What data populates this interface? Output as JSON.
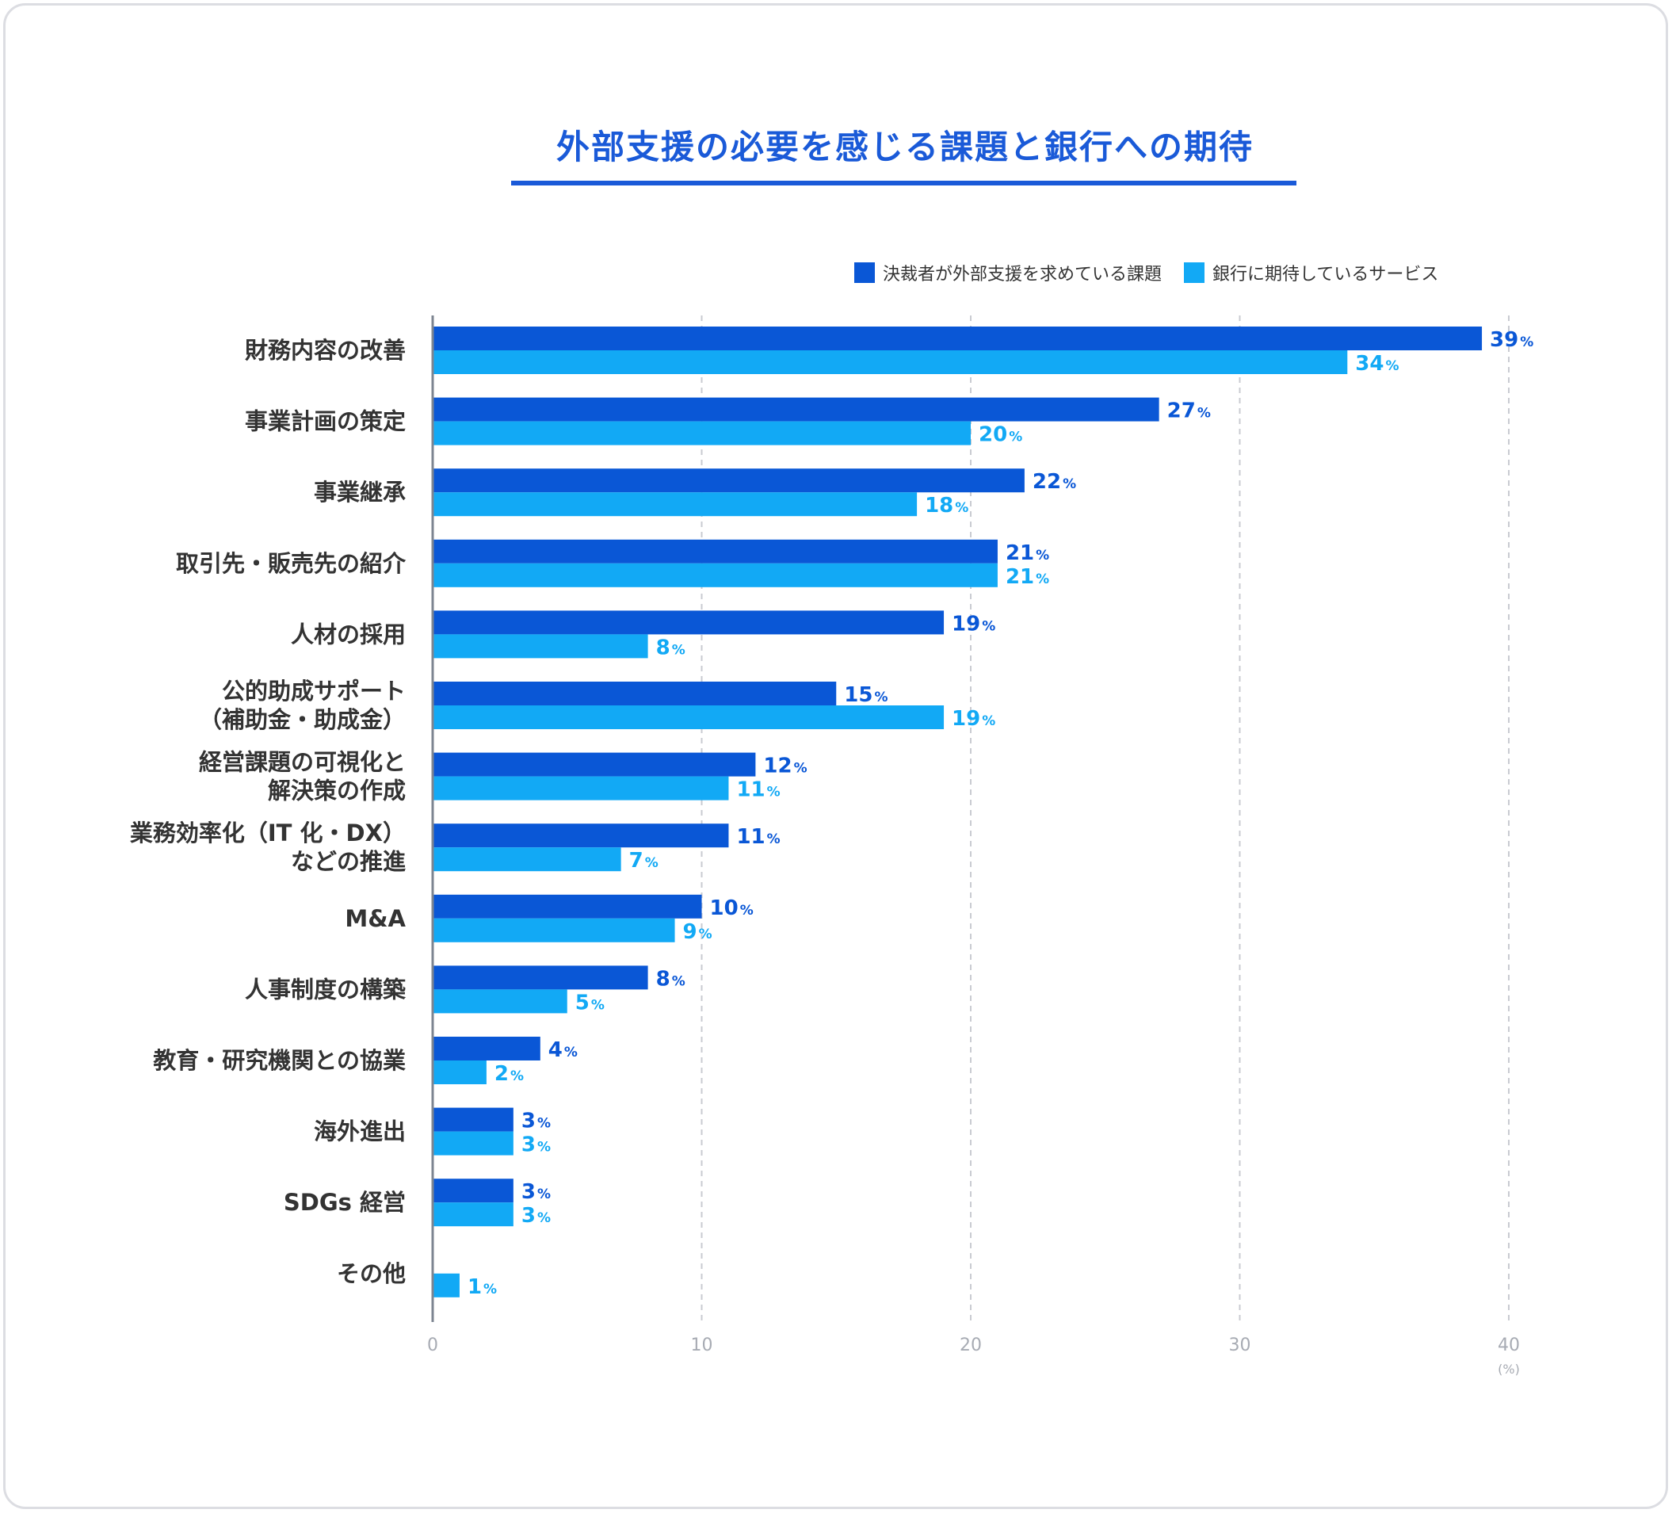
{
  "chart_data": {
    "type": "bar",
    "orientation": "horizontal",
    "title": "外部支援の必要を感じる課題と銀行への期待",
    "categories": [
      [
        "財務内容の改善"
      ],
      [
        "事業計画の策定"
      ],
      [
        "事業継承"
      ],
      [
        "取引先・販売先の紹介"
      ],
      [
        "人材の採用"
      ],
      [
        "公的助成サポート",
        "（補助金・助成金）"
      ],
      [
        "経営課題の可視化と",
        "解決策の作成"
      ],
      [
        "業務効率化（IT 化・DX）",
        "などの推進"
      ],
      [
        "M&A"
      ],
      [
        "人事制度の構築"
      ],
      [
        "教育・研究機関との協業"
      ],
      [
        "海外進出"
      ],
      [
        "SDGs 経営"
      ],
      [
        "その他"
      ]
    ],
    "series": [
      {
        "name": "決裁者が外部支援を求めている課題",
        "color": "#0a57d6",
        "values": [
          39,
          27,
          22,
          21,
          19,
          15,
          12,
          11,
          10,
          8,
          4,
          3,
          3,
          null
        ]
      },
      {
        "name": "銀行に期待しているサービス",
        "color": "#12a9f5",
        "values": [
          34,
          20,
          18,
          21,
          8,
          19,
          11,
          7,
          9,
          5,
          2,
          3,
          3,
          1
        ]
      }
    ],
    "xlim": [
      0,
      40
    ],
    "xticks": [
      "0",
      "10",
      "20",
      "30",
      "40"
    ],
    "xunit": "(%)",
    "value_suffix": "%",
    "grid": true,
    "legend": "top-right"
  }
}
